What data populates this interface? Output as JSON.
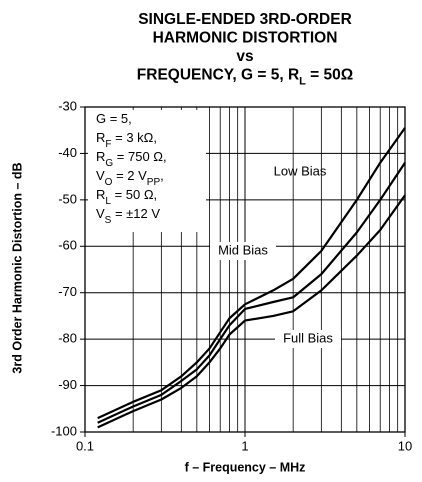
{
  "chart_data": {
    "type": "line",
    "title": [
      [
        "SINGLE-ENDED 3RD-ORDER"
      ],
      [
        "HARMONIC DISTORTION"
      ],
      [
        "vs"
      ],
      [
        "FREQUENCY, G = 5, R",
        "L",
        " = 50Ω"
      ]
    ],
    "xlabel": "f – Frequency – MHz",
    "ylabel": "3rd Order Harmonic Distortion – dB",
    "xscale": "log",
    "xlim": [
      0.1,
      10
    ],
    "xticks": [
      0.1,
      1,
      10
    ],
    "xminor": [
      0.2,
      0.3,
      0.4,
      0.5,
      0.6,
      0.7,
      0.8,
      0.9,
      2,
      3,
      4,
      5,
      6,
      7,
      8,
      9
    ],
    "ylim": [
      -100,
      -30
    ],
    "yticks": [
      -100,
      -90,
      -80,
      -70,
      -60,
      -50,
      -40,
      -30
    ],
    "grid": true,
    "conditions": [
      [
        "G = 5,"
      ],
      [
        "R",
        "F",
        " = 3 kΩ,"
      ],
      [
        "R",
        "G",
        " = 750 Ω,"
      ],
      [
        "V",
        "O",
        " = 2 V",
        "PP",
        ","
      ],
      [
        "R",
        "L",
        " = 50 Ω,"
      ],
      [
        "V",
        "S",
        " = ±12 V"
      ]
    ],
    "x": [
      0.12,
      0.2,
      0.3,
      0.4,
      0.5,
      0.6,
      0.7,
      0.8,
      1,
      1.5,
      2,
      3,
      5,
      7,
      10
    ],
    "series": [
      {
        "name": "Low Bias",
        "color": "#000000",
        "values": [
          -97,
          -93.5,
          -91,
          -88,
          -85,
          -82,
          -78.5,
          -75.5,
          -72.5,
          -69.5,
          -67,
          -61,
          -50,
          -42,
          -34.5
        ]
      },
      {
        "name": "Mid Bias",
        "color": "#000000",
        "values": [
          -98,
          -94.5,
          -92,
          -89,
          -86.5,
          -83.5,
          -80,
          -77,
          -73.5,
          -72,
          -71,
          -66,
          -57,
          -50,
          -42
        ]
      },
      {
        "name": "Full Bias",
        "color": "#000000",
        "values": [
          -99,
          -95.5,
          -93,
          -90.5,
          -88,
          -85,
          -82,
          -79,
          -76,
          -75,
          -74,
          -69.5,
          -62,
          -56.5,
          -49
        ]
      }
    ]
  }
}
